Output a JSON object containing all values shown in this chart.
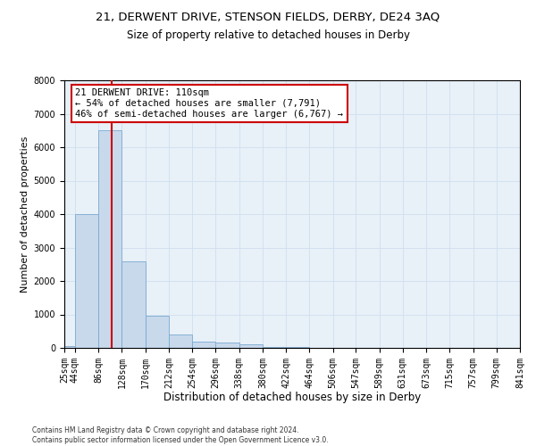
{
  "title1": "21, DERWENT DRIVE, STENSON FIELDS, DERBY, DE24 3AQ",
  "title2": "Size of property relative to detached houses in Derby",
  "xlabel": "Distribution of detached houses by size in Derby",
  "ylabel": "Number of detached properties",
  "bar_color": "#c8d9ec",
  "bar_edge_color": "#7aaad0",
  "bin_labels": [
    "25sqm",
    "44sqm",
    "86sqm",
    "128sqm",
    "170sqm",
    "212sqm",
    "254sqm",
    "296sqm",
    "338sqm",
    "380sqm",
    "422sqm",
    "464sqm",
    "506sqm",
    "547sqm",
    "589sqm",
    "631sqm",
    "673sqm",
    "715sqm",
    "757sqm",
    "799sqm",
    "841sqm"
  ],
  "bin_edges": [
    25,
    44,
    86,
    128,
    170,
    212,
    254,
    296,
    338,
    380,
    422,
    464,
    506,
    547,
    589,
    631,
    673,
    715,
    757,
    799,
    841
  ],
  "bar_heights": [
    50,
    4000,
    6500,
    2600,
    950,
    400,
    180,
    150,
    100,
    30,
    20,
    5,
    2,
    2,
    1,
    1,
    0,
    0,
    0,
    0
  ],
  "ylim": [
    0,
    8000
  ],
  "yticks": [
    0,
    1000,
    2000,
    3000,
    4000,
    5000,
    6000,
    7000,
    8000
  ],
  "property_size": 110,
  "red_line_color": "#cc0000",
  "annotation_line1": "21 DERWENT DRIVE: 110sqm",
  "annotation_line2": "← 54% of detached houses are smaller (7,791)",
  "annotation_line3": "46% of semi-detached houses are larger (6,767) →",
  "annotation_box_color": "#ffffff",
  "annotation_box_edgecolor": "#cc0000",
  "grid_color": "#d0dfee",
  "background_color": "#e8f0f8",
  "footer_text": "Contains HM Land Registry data © Crown copyright and database right 2024.\nContains public sector information licensed under the Open Government Licence v3.0.",
  "title1_fontsize": 9.5,
  "title2_fontsize": 8.5,
  "xlabel_fontsize": 8.5,
  "ylabel_fontsize": 8,
  "tick_fontsize": 7,
  "annot_fontsize": 7.5
}
